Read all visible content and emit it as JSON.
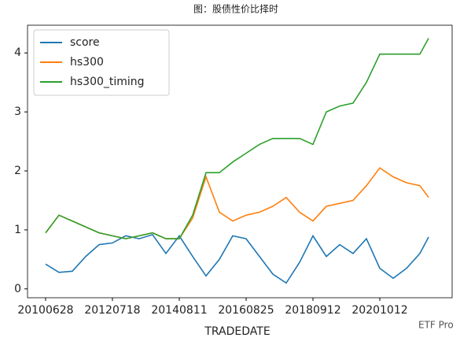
{
  "chart_data": {
    "type": "line",
    "title": "图：股债性价比择时",
    "x_label": "TRADEDATE",
    "watermark": "ETF Pro",
    "x": [
      0,
      100,
      200,
      300,
      400,
      500,
      600,
      700,
      800,
      900,
      1000,
      1100,
      1200,
      1300,
      1400,
      1500,
      1600,
      1700,
      1800,
      1900,
      2000,
      2100,
      2200,
      2300,
      2400,
      2500,
      2600,
      2700,
      2800,
      2865
    ],
    "series": [
      {
        "name": "score",
        "color": "#1f77b4",
        "values": [
          0.42,
          0.28,
          0.3,
          0.55,
          0.75,
          0.78,
          0.9,
          0.85,
          0.92,
          0.6,
          0.9,
          0.55,
          0.22,
          0.5,
          0.9,
          0.85,
          0.55,
          0.25,
          0.1,
          0.45,
          0.9,
          0.55,
          0.75,
          0.6,
          0.85,
          0.35,
          0.18,
          0.35,
          0.6,
          0.88
        ]
      },
      {
        "name": "hs300",
        "color": "#ff7f0e",
        "values": [
          0.95,
          1.25,
          1.15,
          1.05,
          0.95,
          0.9,
          0.85,
          0.9,
          0.95,
          0.85,
          0.85,
          1.2,
          1.9,
          1.3,
          1.15,
          1.25,
          1.3,
          1.4,
          1.55,
          1.3,
          1.15,
          1.4,
          1.45,
          1.5,
          1.75,
          2.05,
          1.9,
          1.8,
          1.75,
          1.55
        ]
      },
      {
        "name": "hs300_timing",
        "color": "#2ca02c",
        "values": [
          0.95,
          1.25,
          1.15,
          1.05,
          0.95,
          0.9,
          0.85,
          0.9,
          0.95,
          0.85,
          0.85,
          1.25,
          1.97,
          1.97,
          2.15,
          2.3,
          2.45,
          2.55,
          2.55,
          2.55,
          2.45,
          3.0,
          3.1,
          3.15,
          3.5,
          3.98,
          3.98,
          3.98,
          3.98,
          4.25
        ]
      }
    ],
    "xlim": [
      -135,
      3041
    ],
    "ylim": [
      -0.15,
      4.47
    ],
    "xticks": [
      {
        "value": 0,
        "label": "20100628"
      },
      {
        "value": 500,
        "label": "20120718"
      },
      {
        "value": 1000,
        "label": "20140811"
      },
      {
        "value": 1500,
        "label": "20160825"
      },
      {
        "value": 2000,
        "label": "20180912"
      },
      {
        "value": 2500,
        "label": "20201012"
      }
    ],
    "yticks": [
      0,
      1,
      2,
      3,
      4
    ],
    "legend": "upper left"
  }
}
